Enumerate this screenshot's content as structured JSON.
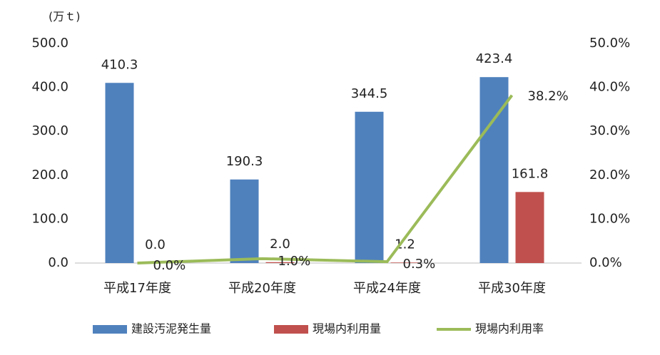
{
  "chart_data": {
    "type": "bar",
    "y_axis_label": "(万ｔ)",
    "categories": [
      "平成17年度",
      "平成20年度",
      "平成24年度",
      "平成30年度"
    ],
    "series": [
      {
        "name": "建設汚泥発生量",
        "color": "#4f81bd",
        "values": [
          410.3,
          190.3,
          344.5,
          423.4
        ]
      },
      {
        "name": "現場内利用量",
        "color": "#c0504d",
        "values": [
          0,
          2,
          1.2,
          161.8
        ],
        "value_labels": [
          "0.0",
          "2.0",
          "1.2",
          "161.8"
        ]
      },
      {
        "name": "現場内利用率",
        "type": "line",
        "axis": "y2",
        "color": "#9bbb59",
        "values": [
          0,
          1,
          0.3,
          38.2
        ],
        "value_labels": [
          "0.0%",
          "1.0%",
          "0.3%",
          "38.2%"
        ]
      }
    ],
    "ylim": [
      0,
      500
    ],
    "yticks": [
      {
        "value": 0,
        "label": "0.0"
      },
      {
        "value": 100,
        "label": "100.0"
      },
      {
        "value": 200,
        "label": "200.0"
      },
      {
        "value": 300,
        "label": "300.0"
      },
      {
        "value": 400,
        "label": "400.0"
      },
      {
        "value": 500,
        "label": "500.0"
      }
    ],
    "y2lim": [
      0,
      50
    ],
    "y2ticks": [
      {
        "value": 0,
        "label": "0.0%"
      },
      {
        "value": 10,
        "label": "10.0%"
      },
      {
        "value": 20,
        "label": "20.0%"
      },
      {
        "value": 30,
        "label": "30.0%"
      },
      {
        "value": 40,
        "label": "40.0%"
      },
      {
        "value": 50,
        "label": "50.0%"
      }
    ],
    "grid": false,
    "legend": "bottom"
  }
}
